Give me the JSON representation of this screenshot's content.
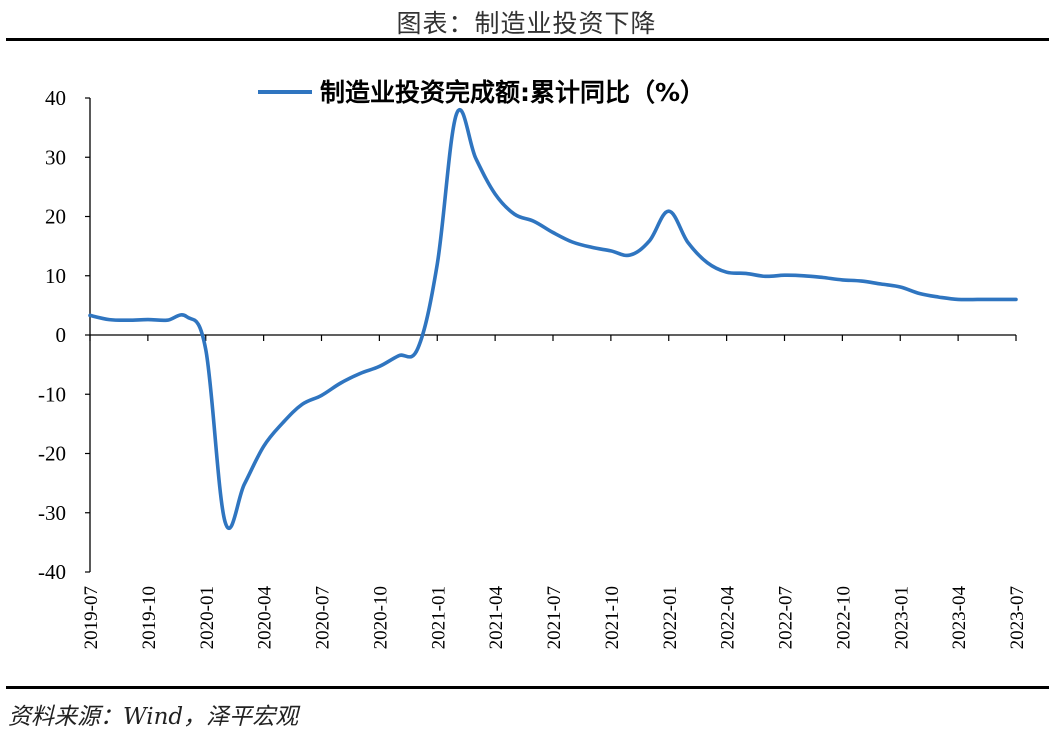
{
  "page": {
    "title": "图表：制造业投资下降",
    "source": "资料来源：Wind，泽平宏观"
  },
  "chart_data": {
    "type": "line",
    "title": "",
    "xlabel": "",
    "ylabel": "",
    "ylim": [
      -40,
      40
    ],
    "yticks": [
      40,
      30,
      20,
      10,
      0,
      -10,
      -20,
      -30,
      -40
    ],
    "xticks": [
      "2019-07",
      "2019-10",
      "2020-01",
      "2020-04",
      "2020-07",
      "2020-10",
      "2021-01",
      "2021-04",
      "2021-07",
      "2021-10",
      "2022-01",
      "2022-04",
      "2022-07",
      "2022-10",
      "2023-01",
      "2023-04",
      "2023-07"
    ],
    "legend": {
      "position": "top-center"
    },
    "grid": false,
    "series": [
      {
        "name": "制造业投资完成额:累计同比（%）",
        "color": "#2F75C0",
        "x": [
          "2019-07",
          "2019-08",
          "2019-09",
          "2019-10",
          "2019-11",
          "2019-12",
          "2020-01",
          "2020-02",
          "2020-03",
          "2020-04",
          "2020-05",
          "2020-06",
          "2020-07",
          "2020-08",
          "2020-09",
          "2020-10",
          "2020-11",
          "2020-12",
          "2021-01",
          "2021-02",
          "2021-03",
          "2021-04",
          "2021-05",
          "2021-06",
          "2021-07",
          "2021-08",
          "2021-09",
          "2021-10",
          "2021-11",
          "2021-12",
          "2022-01",
          "2022-02",
          "2022-03",
          "2022-04",
          "2022-05",
          "2022-06",
          "2022-07",
          "2022-08",
          "2022-09",
          "2022-10",
          "2022-11",
          "2022-12",
          "2023-01",
          "2023-02",
          "2023-03",
          "2023-04",
          "2023-05",
          "2023-06",
          "2023-07"
        ],
        "values": [
          3.3,
          2.6,
          2.5,
          2.6,
          2.5,
          3.1,
          -2.5,
          -31.5,
          -25.2,
          -18.8,
          -14.8,
          -11.7,
          -10.2,
          -8.1,
          -6.5,
          -5.3,
          -3.5,
          -2.2,
          12.0,
          37.3,
          29.8,
          23.8,
          20.4,
          19.2,
          17.3,
          15.7,
          14.8,
          14.2,
          13.5,
          15.9,
          20.9,
          15.6,
          12.2,
          10.6,
          10.4,
          9.9,
          10.1,
          10.0,
          9.7,
          9.3,
          9.1,
          8.6,
          8.1,
          7.0,
          6.4,
          6.0,
          6.0,
          6.0,
          6.0
        ]
      }
    ]
  }
}
